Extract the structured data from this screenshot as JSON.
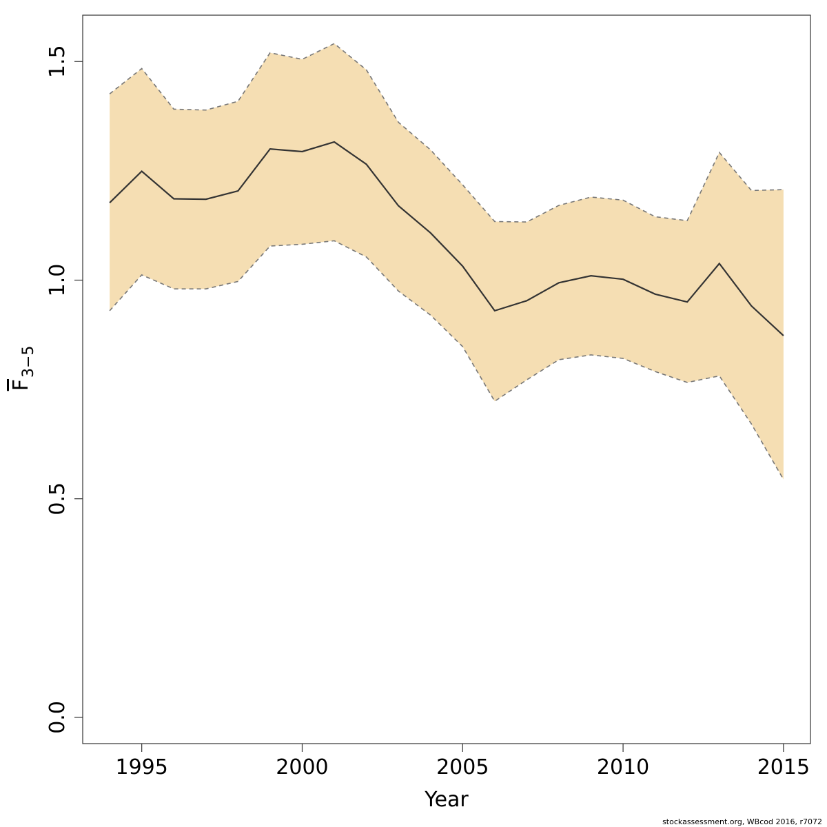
{
  "chart_data": {
    "type": "line",
    "x_label": "Year",
    "y_label": "F",
    "y_label_sub": "3−5",
    "footer": "stockassessment.org, WBcod 2016, r7072",
    "x": [
      1994,
      1995,
      1996,
      1997,
      1998,
      1999,
      2000,
      2001,
      2002,
      2003,
      2004,
      2005,
      2006,
      2007,
      2008,
      2009,
      2010,
      2011,
      2012,
      2013,
      2014,
      2015
    ],
    "series": [
      {
        "color": "#333333",
        "values": [
          1.177,
          1.249,
          1.186,
          1.185,
          1.204,
          1.3,
          1.294,
          1.316,
          1.265,
          1.17,
          1.108,
          1.032,
          0.93,
          0.953,
          0.994,
          1.01,
          1.002,
          0.968,
          0.95,
          1.038,
          0.941,
          0.873
        ]
      },
      {
        "color": "#777777",
        "dashed": true,
        "values": [
          1.426,
          1.484,
          1.391,
          1.389,
          1.409,
          1.52,
          1.505,
          1.541,
          1.481,
          1.361,
          1.298,
          1.218,
          1.134,
          1.133,
          1.171,
          1.19,
          1.183,
          1.145,
          1.136,
          1.292,
          1.205,
          1.207
        ]
      },
      {
        "color": "#777777",
        "dashed": true,
        "values": [
          0.93,
          1.012,
          0.98,
          0.98,
          0.997,
          1.078,
          1.082,
          1.09,
          1.053,
          0.975,
          0.92,
          0.848,
          0.723,
          0.772,
          0.818,
          0.829,
          0.821,
          0.791,
          0.766,
          0.781,
          0.671,
          0.544
        ]
      }
    ],
    "band_color": "#f5deb3",
    "xlim": [
      1993.16,
      2015.84
    ],
    "xticks": [
      1995,
      2000,
      2005,
      2010,
      2015
    ],
    "ylim": [
      -0.06,
      1.606
    ],
    "yticks": [
      {
        "value": 0,
        "label": "0.0"
      },
      {
        "value": 0.5,
        "label": "0.5"
      },
      {
        "value": 1,
        "label": "1.0"
      },
      {
        "value": 1.5,
        "label": "1.5"
      }
    ],
    "grid": false
  }
}
